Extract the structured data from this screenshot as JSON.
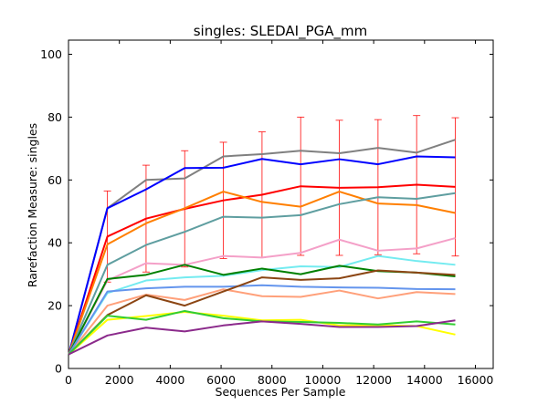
{
  "chart_data": {
    "type": "line",
    "title": "singles: SLEDAI_PGA_mm",
    "xlabel": "Sequences Per Sample",
    "ylabel": "Rarefaction Measure: singles",
    "xlim": [
      0,
      16700
    ],
    "ylim": [
      0,
      104.5
    ],
    "xticks": [
      0,
      2000,
      4000,
      6000,
      8000,
      10000,
      12000,
      14000,
      16000
    ],
    "yticks": [
      0,
      20,
      40,
      60,
      80,
      100
    ],
    "grid": false,
    "legend": "none",
    "x": [
      10,
      1530,
      3050,
      4570,
      6090,
      7610,
      9130,
      10650,
      12170,
      13690,
      15210
    ],
    "series": [
      {
        "color": "#808080",
        "values": [
          4.5,
          51,
          60,
          60.5,
          67.5,
          68.2,
          69.3,
          68.5,
          70.2,
          68.7,
          72.8
        ]
      },
      {
        "color": "#0000ff",
        "values": [
          4.5,
          51,
          57,
          63.8,
          63.9,
          66.7,
          65,
          66.6,
          65,
          67.5,
          67.2
        ]
      },
      {
        "color": "#ff0000",
        "values": [
          4.5,
          42,
          47.7,
          50.8,
          53.5,
          55.3,
          58,
          57.5,
          57.7,
          58.5,
          57.8
        ],
        "error_bars": [
          null,
          14.5,
          17,
          18.5,
          18.5,
          20,
          22,
          21.5,
          21.5,
          22,
          22
        ]
      },
      {
        "color": "#ff7f00",
        "values": [
          4.5,
          39.5,
          46.2,
          51,
          56.3,
          53,
          51.5,
          56.3,
          52.5,
          52,
          49.5
        ]
      },
      {
        "color": "#5f9ea0",
        "values": [
          4.5,
          33,
          39.3,
          43.5,
          48.3,
          48,
          48.8,
          52.3,
          54.5,
          54,
          55.8
        ]
      },
      {
        "color": "#f4a0c8",
        "values": [
          4.5,
          28,
          33.5,
          33,
          35.8,
          35.3,
          36.8,
          41,
          37.5,
          38.2,
          41.5
        ]
      },
      {
        "color": "#ffa07a",
        "values": [
          4.5,
          20,
          23.5,
          21.8,
          25.2,
          23,
          22.8,
          24.8,
          22.3,
          24.3,
          23.7
        ]
      },
      {
        "color": "#74ebf0",
        "values": [
          4.5,
          24,
          28,
          29,
          29.5,
          31.3,
          32.5,
          32.3,
          35.8,
          34.2,
          33
        ]
      },
      {
        "color": "#008000",
        "values": [
          4.5,
          28.5,
          29.8,
          33,
          29.8,
          31.8,
          30,
          32.7,
          31,
          30.5,
          29.3
        ]
      },
      {
        "color": "#6495ed",
        "values": [
          4.5,
          24.5,
          25.5,
          26,
          26,
          26.5,
          26,
          25.8,
          25.7,
          25.3,
          25.2
        ]
      },
      {
        "color": "#8b4513",
        "values": [
          4.5,
          17,
          23.3,
          20,
          24.5,
          29,
          28.2,
          28.7,
          31.2,
          30.5,
          29.8
        ]
      },
      {
        "color": "#ffff00",
        "values": [
          4.5,
          15.5,
          16.7,
          18,
          16.8,
          15.3,
          15.5,
          13.7,
          13.8,
          13.5,
          10.8
        ]
      },
      {
        "color": "#32cd32",
        "values": [
          4.5,
          16.8,
          15.5,
          18.3,
          16,
          15,
          14.8,
          14.5,
          14,
          15,
          14
        ]
      },
      {
        "color": "#8b2a8b",
        "values": [
          4.5,
          10.5,
          13,
          11.8,
          13.7,
          15,
          14.2,
          13.2,
          13.2,
          13.5,
          15.3
        ]
      }
    ]
  }
}
